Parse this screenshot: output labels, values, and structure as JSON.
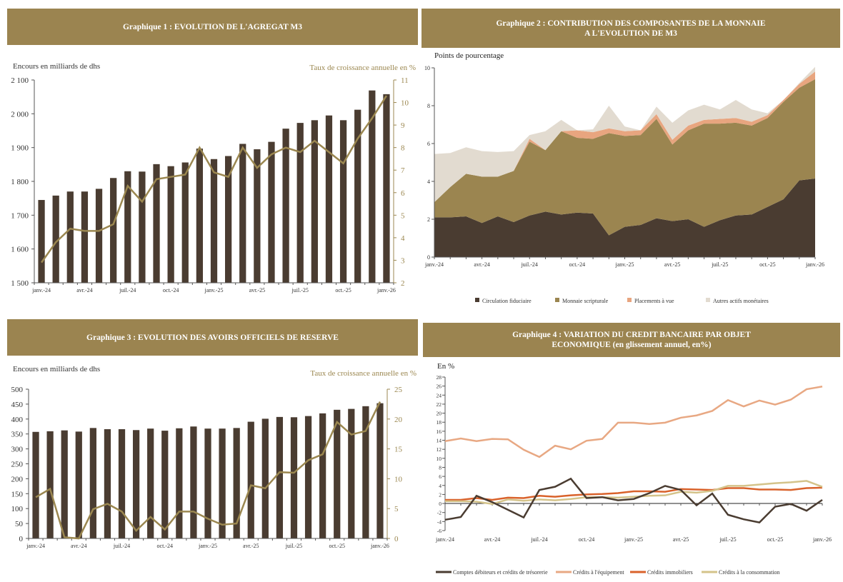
{
  "colors": {
    "header": "#9b8450",
    "bar": "#4a3c31",
    "line": "#9b8750"
  },
  "chart_data": [
    {
      "type": "bar",
      "title": "Graphique 1 : EVOLUTION DE L'AGREGAT M3",
      "ylabel": "Encours en milliards de dhs",
      "y2label": "Taux de croissance annuelle en %",
      "x_tick_labels": [
        "janv.-24",
        "avr.-24",
        "juil.-24",
        "oct.-24",
        "janv.-25",
        "avr.-25",
        "juil.-25",
        "oct.-25",
        "janv.-26"
      ],
      "ylim": [
        1500,
        2100
      ],
      "y_ticks": [
        1500,
        1600,
        1700,
        1800,
        1900,
        2000,
        2100
      ],
      "y_tick_labels": [
        "1 500",
        "1 600",
        "1 700",
        "1 800",
        "1 900",
        "2 000",
        "2 100"
      ],
      "y2lim": [
        2,
        11
      ],
      "y2_ticks": [
        2,
        3,
        4,
        5,
        6,
        7,
        8,
        9,
        10,
        11
      ],
      "bars": [
        1745,
        1758,
        1770,
        1770,
        1778,
        1810,
        1830,
        1829,
        1851,
        1845,
        1856,
        1897,
        1866,
        1875,
        1911,
        1895,
        1917,
        1956,
        1973,
        1981,
        1995,
        1981,
        2012,
        2069,
        2058
      ],
      "line": [
        2.9,
        3.8,
        4.4,
        4.3,
        4.3,
        4.6,
        6.3,
        5.6,
        6.6,
        6.7,
        6.8,
        8.0,
        6.9,
        6.7,
        8.0,
        7.1,
        7.7,
        8.0,
        7.8,
        8.3,
        7.8,
        7.3,
        8.4,
        9.3,
        10.3
      ],
      "grid": false
    },
    {
      "type": "area",
      "title": "Graphique 2 : CONTRIBUTION DES COMPOSANTES DE  LA MONNAIE\nA L'EVOLUTION DE M3",
      "ylabel": "Points de pourcentage",
      "x_tick_labels": [
        "janv.-24",
        "avr.-24",
        "juil.-24",
        "oct.-24",
        "janv.-25",
        "avr.-25",
        "juil.-25",
        "oct.-25",
        "janv.-26"
      ],
      "ylim": [
        0,
        10
      ],
      "y_ticks": [
        0,
        2,
        4,
        6,
        8,
        10
      ],
      "legend_position": "bottom",
      "series": [
        {
          "name": "Circulation fiduciaire",
          "color": "#4a3c31",
          "values": [
            2.1,
            2.1,
            2.15,
            1.8,
            2.15,
            1.85,
            2.2,
            2.4,
            2.25,
            2.35,
            2.3,
            1.15,
            1.6,
            1.7,
            2.05,
            1.9,
            2.0,
            1.6,
            1.95,
            2.2,
            2.25,
            2.65,
            3.05,
            4.05,
            4.15
          ]
        },
        {
          "name": "Monnaie scripturale",
          "color": "#9b8550",
          "values": [
            0.8,
            1.6,
            2.25,
            2.45,
            2.1,
            2.7,
            3.9,
            3.25,
            4.4,
            3.95,
            3.95,
            5.4,
            4.8,
            4.75,
            5.25,
            4.05,
            4.7,
            5.45,
            5.1,
            4.9,
            4.7,
            4.7,
            5.15,
            4.9,
            5.25
          ]
        },
        {
          "name": "Placements à vue",
          "color": "#e8a57f",
          "values": [
            0,
            0,
            0,
            0,
            0,
            0,
            0.15,
            0,
            0,
            0.4,
            0.35,
            0.25,
            0.25,
            0.25,
            0.25,
            0.25,
            0.25,
            0.2,
            0.25,
            0.25,
            0.2,
            0.15,
            0.1,
            0.2,
            0.4
          ]
        },
        {
          "name": "Autres actifs monétaires",
          "color": "#e2dbd0",
          "values": [
            2.55,
            1.8,
            1.4,
            1.35,
            1.3,
            1.05,
            0.2,
            1.0,
            0.6,
            0,
            0.15,
            1.2,
            0.25,
            0,
            0.4,
            0.9,
            0.8,
            0.8,
            0.5,
            0.95,
            0.65,
            0.1,
            0,
            0.05,
            0.25
          ]
        }
      ]
    },
    {
      "type": "bar",
      "title": "Graphique 3 : EVOLUTION DES AVOIRS OFFICIELS DE RESERVE",
      "ylabel": "Encours en milliards de dhs",
      "y2label": "Taux de croissance annuelle en %",
      "x_tick_labels": [
        "janv.-24",
        "avr.-24",
        "juil.-24",
        "oct.-24",
        "janv.-25",
        "avr.-25",
        "juil.-25",
        "oct.-25",
        "janv.-26"
      ],
      "ylim": [
        0,
        500
      ],
      "y_ticks": [
        0,
        50,
        100,
        150,
        200,
        250,
        300,
        350,
        400,
        450,
        500
      ],
      "y_tick_labels": [
        "0",
        "50",
        "100",
        "150",
        "200",
        "250",
        "300",
        "350",
        "400",
        "450",
        "500"
      ],
      "y2lim": [
        0,
        25
      ],
      "y2_ticks": [
        0,
        5,
        10,
        15,
        20,
        25
      ],
      "bars": [
        357,
        359,
        362,
        358,
        370,
        366,
        366,
        363,
        368,
        361,
        369,
        375,
        368,
        368,
        370,
        391,
        401,
        407,
        406,
        410,
        419,
        431,
        434,
        443,
        453
      ],
      "line": [
        6.9,
        8.3,
        0.2,
        0.0,
        4.9,
        5.8,
        4.5,
        1.3,
        3.6,
        1.5,
        4.5,
        4.5,
        3.3,
        2.3,
        2.5,
        8.9,
        8.4,
        11.1,
        11.0,
        13.1,
        14.1,
        19.5,
        17.4,
        18.0,
        22.9
      ],
      "grid": false
    },
    {
      "type": "line",
      "title": "Graphique 4 : VARIATION DU CREDIT BANCAIRE PAR OBJET\nECONOMIQUE (en glissement annuel, en%)",
      "ylabel": "En %",
      "x_tick_labels": [
        "janv.-24",
        "avr.-24",
        "juil.-24",
        "oct.-24",
        "janv.-25",
        "avr.-25",
        "juil.-25",
        "oct.-25",
        "janv.-26"
      ],
      "ylim": [
        -6,
        28
      ],
      "y_ticks": [
        -6,
        -4,
        -2,
        0,
        2,
        4,
        6,
        8,
        10,
        12,
        14,
        16,
        18,
        20,
        22,
        24,
        26,
        28
      ],
      "legend_position": "bottom",
      "series": [
        {
          "name": "Comptes débiteurs et crédits de trésorerie",
          "color": "#4a3c31",
          "values": [
            -3.6,
            -3.0,
            1.7,
            0.3,
            -1.4,
            -3.1,
            3.0,
            3.7,
            5.5,
            1.2,
            1.4,
            0.7,
            1.0,
            2.3,
            3.9,
            3.0,
            -0.4,
            2.2,
            -2.5,
            -3.5,
            -4.2,
            -0.7,
            -0.1,
            -1.6,
            0.8
          ]
        },
        {
          "name": "Crédits à l'équipement",
          "color": "#e8a883",
          "values": [
            13.8,
            14.4,
            13.8,
            14.3,
            14.2,
            11.9,
            10.3,
            12.8,
            12.0,
            13.9,
            14.3,
            17.9,
            17.9,
            17.6,
            17.9,
            19.0,
            19.5,
            20.5,
            22.9,
            21.5,
            22.8,
            21.9,
            23.0,
            25.3,
            25.9
          ]
        },
        {
          "name": "Crédits immobiliers",
          "color": "#d9622b",
          "values": [
            0.8,
            0.8,
            1.2,
            0.8,
            1.3,
            1.2,
            1.7,
            1.5,
            1.8,
            2.0,
            2.1,
            2.3,
            2.7,
            2.7,
            2.6,
            3.2,
            3.1,
            3.0,
            3.4,
            3.4,
            3.1,
            3.1,
            3.0,
            3.4,
            3.5
          ]
        },
        {
          "name": "Crédits à la consommation",
          "color": "#d4c38a",
          "values": [
            0.5,
            0.5,
            0.4,
            -0.1,
            0.9,
            0.6,
            0.9,
            0.7,
            1.0,
            1.4,
            1.4,
            1.3,
            1.5,
            1.7,
            1.8,
            2.6,
            2.4,
            2.8,
            3.9,
            3.9,
            4.2,
            4.5,
            4.7,
            5.0,
            3.7
          ]
        }
      ]
    }
  ]
}
